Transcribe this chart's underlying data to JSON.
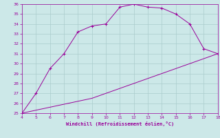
{
  "xlabel": "Windchill (Refroidissement éolien,°C)",
  "x": [
    4,
    5,
    6,
    7,
    8,
    9,
    10,
    11,
    12,
    13,
    14,
    15,
    16,
    17,
    18
  ],
  "y_upper": [
    25,
    27,
    29.5,
    31,
    33.2,
    33.8,
    34,
    35.7,
    36.0,
    35.7,
    35.6,
    35.0,
    34.0,
    31.5,
    31.0
  ],
  "y_lower": [
    25,
    25.3,
    25.6,
    25.9,
    26.2,
    26.5,
    27.0,
    27.5,
    28.0,
    28.5,
    29.0,
    29.5,
    30.0,
    30.5,
    31.0
  ],
  "line_color": "#990099",
  "marker": "+",
  "bg_color": "#cce8e8",
  "grid_color": "#aacccc",
  "tick_color": "#990099",
  "label_color": "#990099",
  "xlim": [
    4,
    18
  ],
  "ylim": [
    25,
    36
  ],
  "xticks": [
    4,
    5,
    6,
    7,
    8,
    9,
    10,
    11,
    12,
    13,
    14,
    15,
    16,
    17,
    18
  ],
  "yticks": [
    25,
    26,
    27,
    28,
    29,
    30,
    31,
    32,
    33,
    34,
    35,
    36
  ],
  "tick_fontsize": 4.5,
  "xlabel_fontsize": 5.0,
  "marker_size": 3.5,
  "linewidth": 0.7
}
